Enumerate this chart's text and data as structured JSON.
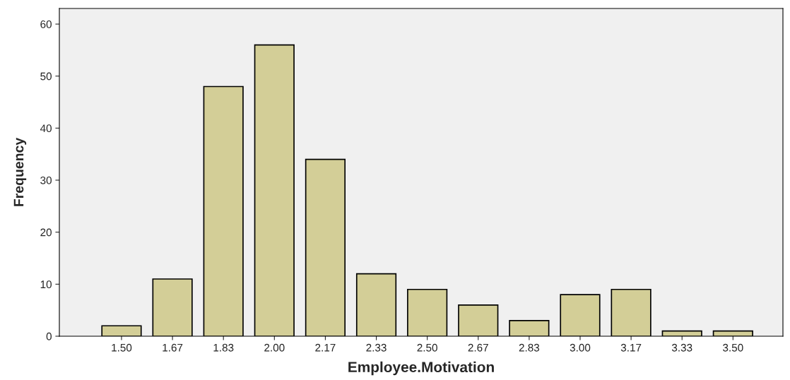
{
  "chart_data": {
    "type": "bar",
    "xlabel": "Employee.Motivation",
    "ylabel": "Frequency",
    "categories": [
      "1.50",
      "1.67",
      "1.83",
      "2.00",
      "2.17",
      "2.33",
      "2.50",
      "2.67",
      "2.83",
      "3.00",
      "3.17",
      "3.33",
      "3.50"
    ],
    "values": [
      2,
      11,
      48,
      56,
      34,
      12,
      9,
      6,
      3,
      8,
      9,
      1,
      1
    ],
    "color": "#d3ce97",
    "ylim": [
      0,
      63
    ],
    "yticks": [
      0,
      10,
      20,
      30,
      40,
      50,
      60
    ],
    "grid": false,
    "legend": false
  }
}
